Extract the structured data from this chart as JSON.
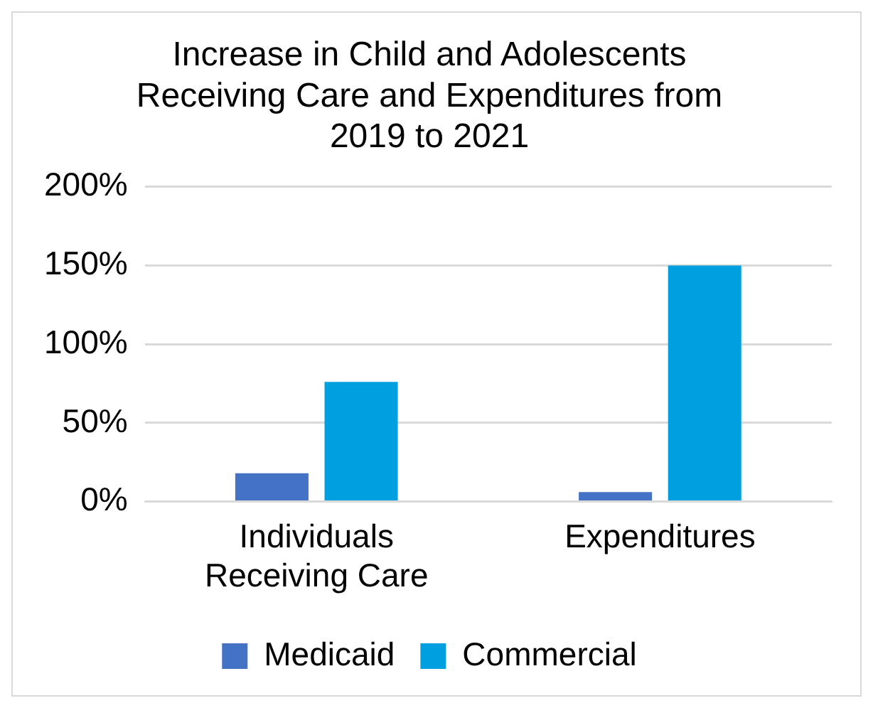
{
  "chart_data": {
    "type": "bar",
    "title": "Increase in Child and Adolescents Receiving Care and Expenditures from 2019 to 2021",
    "categories": [
      "Individuals Receiving Care",
      "Expenditures"
    ],
    "series": [
      {
        "name": "Medicaid",
        "color": "#4472c4",
        "values": [
          18,
          6
        ]
      },
      {
        "name": "Commercial",
        "color": "#00a0e0",
        "values": [
          76,
          150
        ]
      }
    ],
    "ylim": [
      0,
      200
    ],
    "yticks": [
      {
        "value": 0,
        "label": "0%"
      },
      {
        "value": 50,
        "label": "50%"
      },
      {
        "value": 100,
        "label": "100%"
      },
      {
        "value": 150,
        "label": "150%"
      },
      {
        "value": 200,
        "label": "200%"
      }
    ],
    "grid": "y",
    "legend": "bottom"
  }
}
